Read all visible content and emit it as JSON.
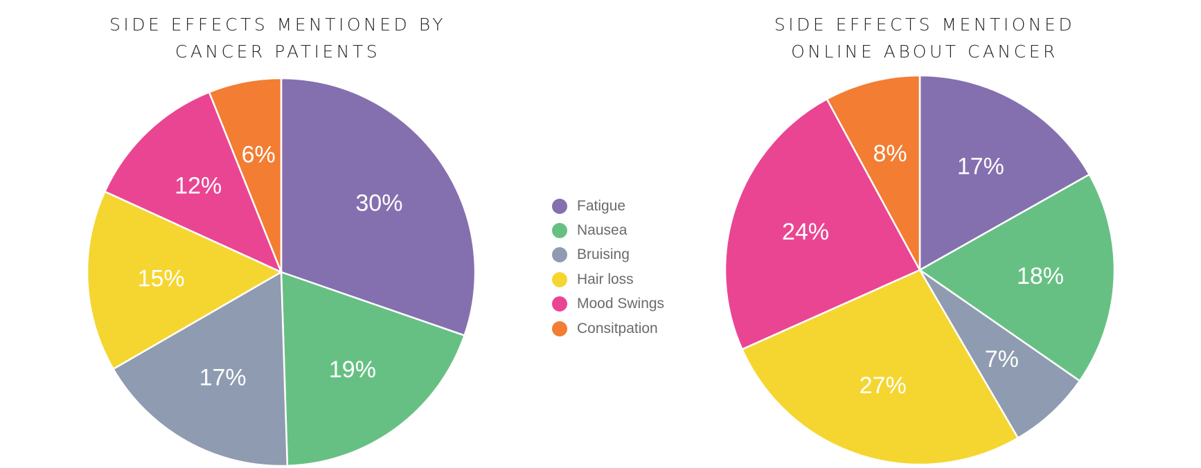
{
  "chart_data": [
    {
      "type": "pie",
      "title": "SIDE EFFECTS MENTIONED BY CANCER PATIENTS",
      "title_lines": [
        "SIDE EFFECTS MENTIONED BY",
        "CANCER PATIENTS"
      ],
      "categories": [
        "Fatigue",
        "Nausea",
        "Bruising",
        "Hair loss",
        "Mood Swings",
        "Consitpation"
      ],
      "values": [
        30,
        19,
        17,
        15,
        12,
        6
      ],
      "labels": [
        "30%",
        "19%",
        "17%",
        "15%",
        "12%",
        "6%"
      ]
    },
    {
      "type": "pie",
      "title": "SIDE EFFECTS MENTIONED ONLINE ABOUT CANCER",
      "title_lines": [
        "SIDE EFFECTS MENTIONED",
        "ONLINE ABOUT CANCER"
      ],
      "categories": [
        "Fatigue",
        "Nausea",
        "Bruising",
        "Hair loss",
        "Mood Swings",
        "Consitpation"
      ],
      "values": [
        17,
        18,
        7,
        27,
        24,
        8
      ],
      "labels": [
        "17%",
        "18%",
        "7%",
        "27%",
        "24%",
        "8%"
      ]
    }
  ],
  "legend": {
    "placement": "center",
    "items": [
      {
        "label": "Fatigue",
        "color": "#8470AF"
      },
      {
        "label": "Nausea",
        "color": "#67C083"
      },
      {
        "label": "Bruising",
        "color": "#8E9BB0"
      },
      {
        "label": "Hair loss",
        "color": "#F5D631"
      },
      {
        "label": "Mood Swings",
        "color": "#EA4592"
      },
      {
        "label": "Consitpation",
        "color": "#F27D33"
      }
    ]
  }
}
